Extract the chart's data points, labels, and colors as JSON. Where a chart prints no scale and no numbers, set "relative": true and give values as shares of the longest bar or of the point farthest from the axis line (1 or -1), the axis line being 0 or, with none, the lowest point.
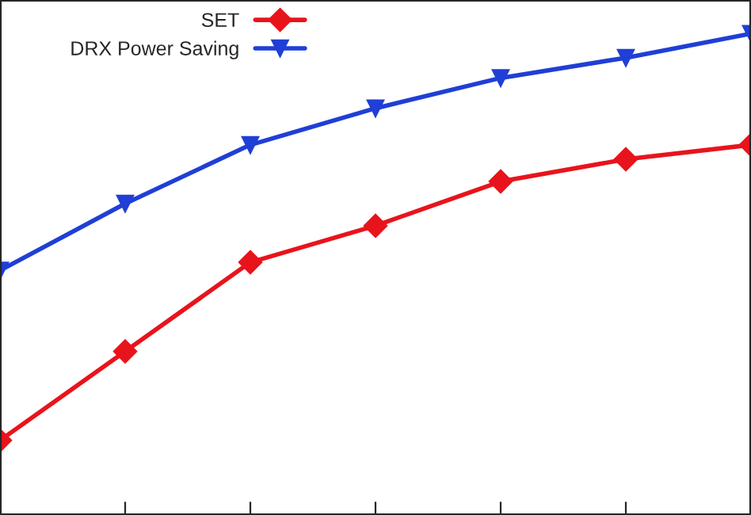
{
  "chart_data": {
    "type": "line",
    "relative": true,
    "categories": [
      null,
      null,
      null,
      null,
      null,
      null,
      null
    ],
    "series": [
      {
        "name": "SET",
        "color": "#e8141c",
        "marker": "diamond",
        "values": [
          0.155,
          0.34,
          0.525,
          0.601,
          0.693,
          0.739,
          0.769
        ]
      },
      {
        "name": "DRX Power Saving",
        "color": "#1f3fd6",
        "marker": "triangle",
        "values": [
          0.508,
          0.647,
          0.769,
          0.845,
          0.908,
          0.95,
          1
        ]
      }
    ],
    "legend": "top left",
    "grid": false,
    "line_style": "solid"
  }
}
